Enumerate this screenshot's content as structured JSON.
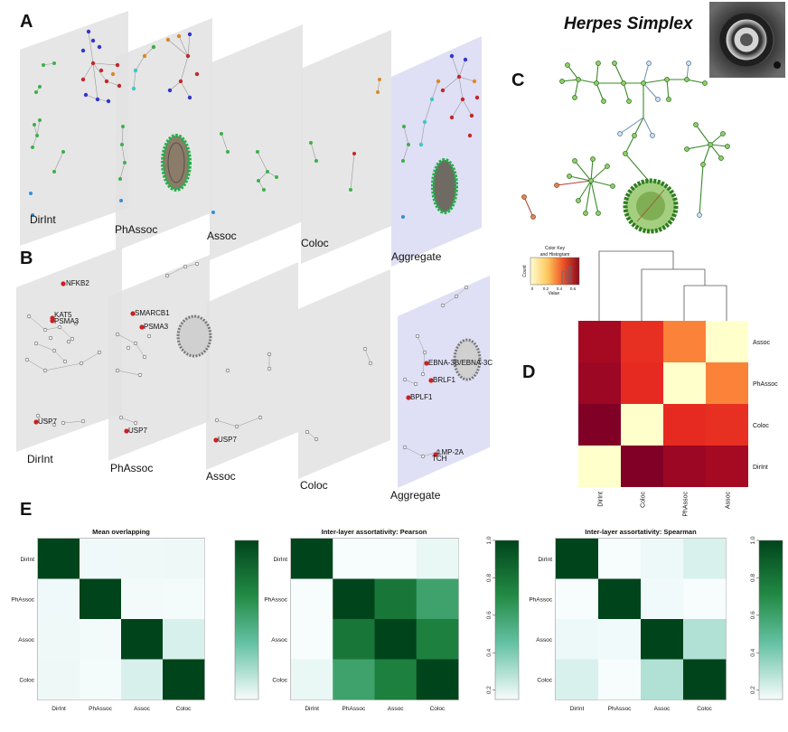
{
  "figure": {
    "panel_letters": [
      "A",
      "B",
      "C",
      "D",
      "E"
    ],
    "title": "Herpes Simplex",
    "panel_a": {
      "layers": [
        "DirInt",
        "PhAssoc",
        "Assoc",
        "Coloc",
        "Aggregate"
      ]
    },
    "panel_b": {
      "layers": [
        "DirInt",
        "PhAssoc",
        "Assoc",
        "Coloc",
        "Aggregate"
      ],
      "highlighted_genes": [
        "NFKB2",
        "KAT5",
        "PSMA3",
        "USP7",
        "SMARCB1",
        "PSMA3",
        "USP7",
        "USP7",
        "EBNA-3B/EBNA-3C",
        "BRLF1",
        "BPLF1",
        "LMP-2A",
        "TCH"
      ]
    },
    "panel_d": {
      "color_key_title": "Color Key",
      "color_key_subtitle": "and Histogram",
      "color_key_xlabel": "Value",
      "color_key_ylabel": "Count",
      "color_key_ticks": [
        "0",
        "0.2",
        "0.4",
        "0.6"
      ],
      "row_labels": [
        "Assoc",
        "PhAssoc",
        "Coloc",
        "DirInt"
      ],
      "col_labels": [
        "DirInt",
        "Coloc",
        "PhAssoc",
        "Assoc"
      ]
    }
  },
  "colors": {
    "plane": "#e2e2e2",
    "plane_aggregate": "#dcdcf4",
    "green_node": "#3cb048",
    "red_node": "#c0282a",
    "blue_node": "#3535c8",
    "orange_node": "#d8892a"
  },
  "chart_data": [
    {
      "type": "heatmap",
      "title": "Mean overlapping",
      "categories": [
        "DirInt",
        "PhAssoc",
        "Assoc",
        "Coloc"
      ],
      "values": [
        [
          1.0,
          0.04,
          0.05,
          0.06
        ],
        [
          0.04,
          1.0,
          0.03,
          0.02
        ],
        [
          0.05,
          0.03,
          1.0,
          0.18
        ],
        [
          0.06,
          0.02,
          0.18,
          1.0
        ]
      ],
      "colorbar_ticks": [],
      "colorbar_range": [
        0,
        1
      ]
    },
    {
      "type": "heatmap",
      "title": "Inter-layer assortativity: Pearson",
      "categories": [
        "DirInt",
        "PhAssoc",
        "Assoc",
        "Coloc"
      ],
      "values": [
        [
          1.0,
          0.1,
          0.12,
          0.22
        ],
        [
          0.1,
          1.0,
          0.85,
          0.7
        ],
        [
          0.12,
          0.85,
          1.0,
          0.82
        ],
        [
          0.22,
          0.7,
          0.82,
          1.0
        ]
      ],
      "colorbar_ticks": [
        "1.0",
        "0.8",
        "0.6",
        "0.4",
        "0.2"
      ],
      "colorbar_range": [
        0.15,
        1
      ]
    },
    {
      "type": "heatmap",
      "title": "Inter-layer assortativity: Spearman",
      "categories": [
        "DirInt",
        "PhAssoc",
        "Assoc",
        "Coloc"
      ],
      "values": [
        [
          1.0,
          0.1,
          0.2,
          0.3
        ],
        [
          0.1,
          1.0,
          0.18,
          0.12
        ],
        [
          0.2,
          0.18,
          1.0,
          0.42
        ],
        [
          0.3,
          0.12,
          0.42,
          1.0
        ]
      ],
      "colorbar_ticks": [
        "1.0",
        "0.8",
        "0.6",
        "0.4",
        "0.2"
      ],
      "colorbar_range": [
        0.15,
        1
      ]
    },
    {
      "type": "heatmap",
      "title": "",
      "rows": [
        "Assoc",
        "PhAssoc",
        "Coloc",
        "DirInt"
      ],
      "cols": [
        "DirInt",
        "Coloc",
        "PhAssoc",
        "Assoc"
      ],
      "values": [
        [
          0.62,
          0.45,
          0.3,
          0.0
        ],
        [
          0.64,
          0.46,
          0.0,
          0.3
        ],
        [
          0.7,
          0.0,
          0.46,
          0.45
        ],
        [
          0.0,
          0.7,
          0.64,
          0.62
        ]
      ],
      "range": [
        0,
        0.7
      ]
    }
  ]
}
